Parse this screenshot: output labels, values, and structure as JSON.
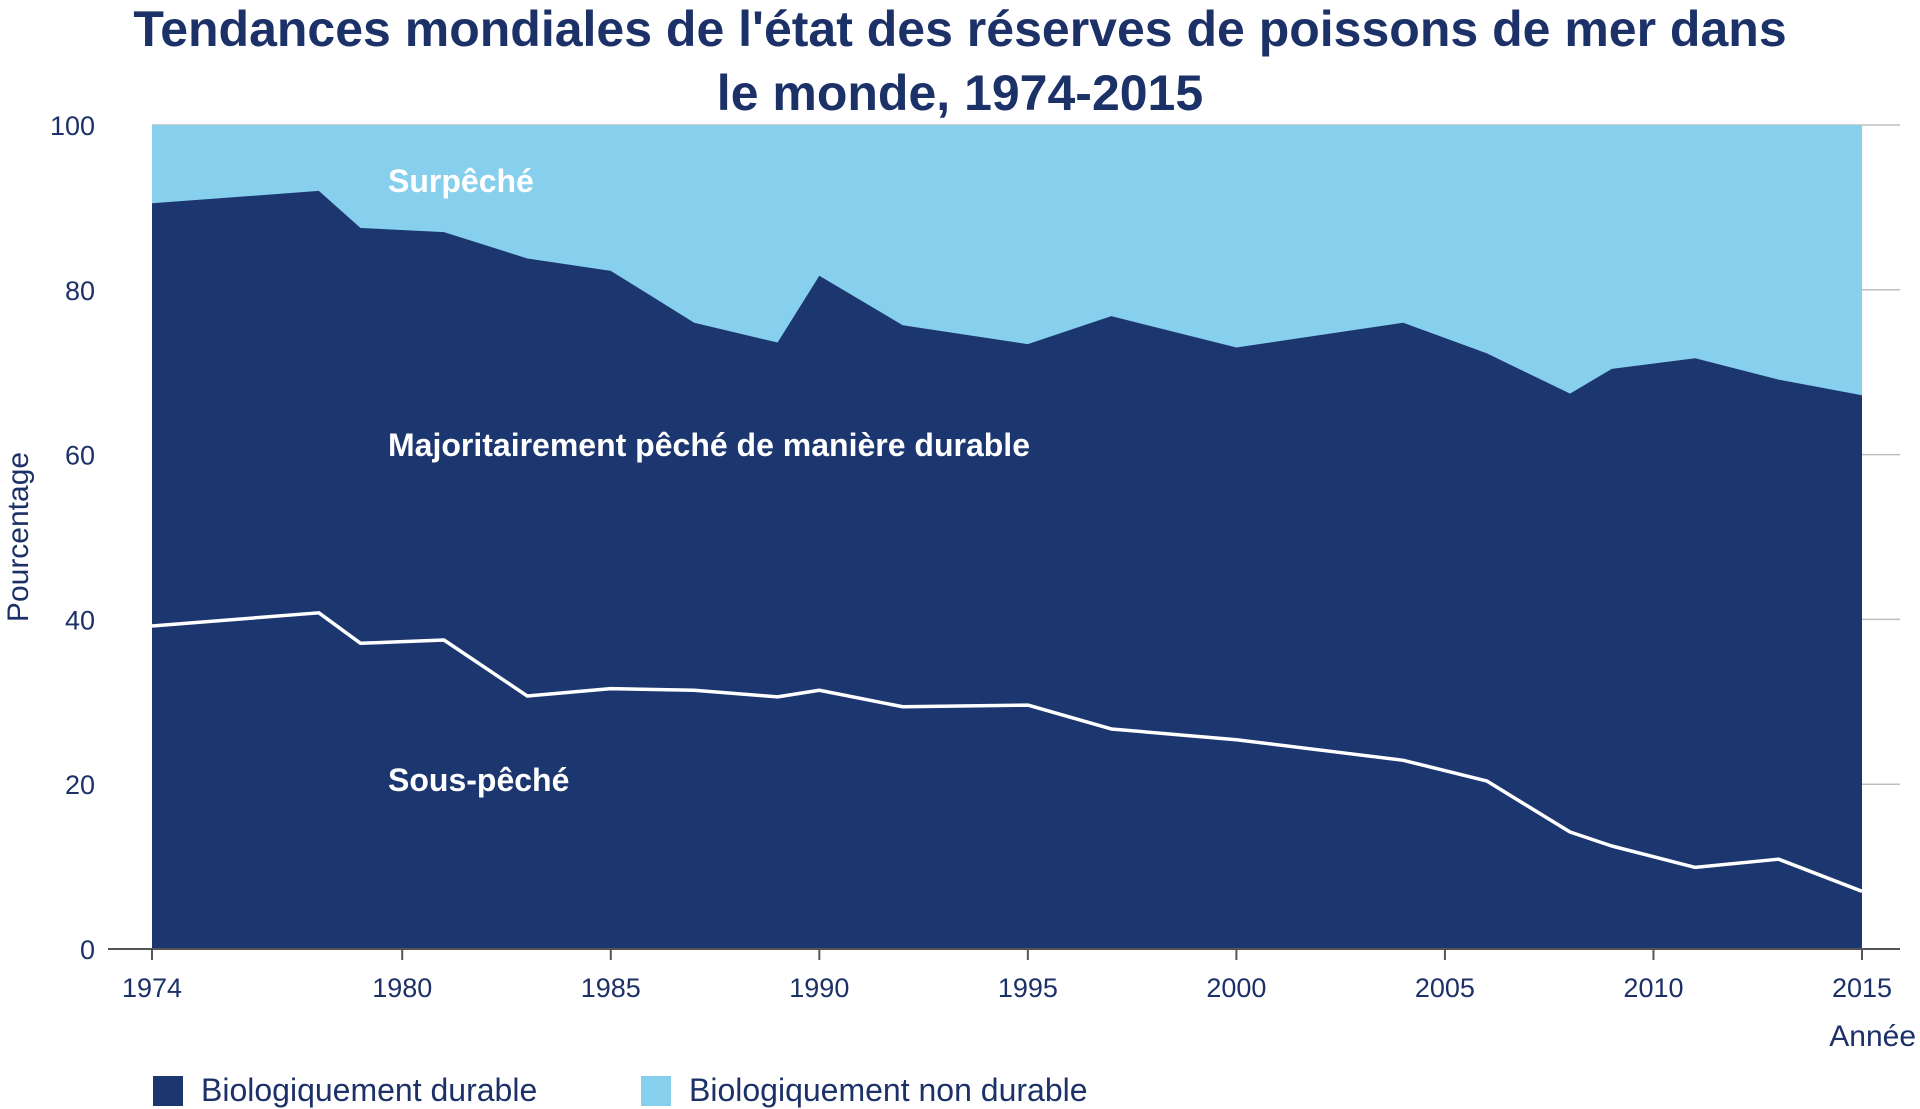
{
  "chart_data": {
    "type": "area",
    "title": "Tendances mondiales de l'état des réserves de poissons de mer dans le monde, 1974-2015",
    "title_lines": [
      "Tendances mondiales de l'état des réserves de poissons de mer dans",
      "le monde, 1974-2015"
    ],
    "xlabel": "Année",
    "ylabel": "Pourcentage",
    "xlim": [
      1974,
      2015
    ],
    "ylim": [
      0,
      100
    ],
    "x_ticks": [
      1974,
      1980,
      1985,
      1990,
      1995,
      2000,
      2005,
      2010,
      2015
    ],
    "y_ticks": [
      0,
      20,
      40,
      60,
      80,
      100
    ],
    "grid": "horizontal",
    "legend_position": "bottom-left",
    "x": [
      1974,
      1978,
      1979,
      1981,
      1983,
      1985,
      1987,
      1989,
      1990,
      1992,
      1995,
      1997,
      2000,
      2004,
      2006,
      2008,
      2009,
      2011,
      2013,
      2015
    ],
    "series": [
      {
        "name": "Sous-pêché",
        "values": [
          39.2,
          40.8,
          37.1,
          37.5,
          30.7,
          31.6,
          31.4,
          30.6,
          31.4,
          29.4,
          29.6,
          26.7,
          25.4,
          22.9,
          20.4,
          14.2,
          12.5,
          9.9,
          10.9,
          7.0
        ]
      },
      {
        "name": "Majoritairement pêché de manière durable",
        "values": [
          51.3,
          51.2,
          50.4,
          49.5,
          53.1,
          50.7,
          44.6,
          43.0,
          50.3,
          46.3,
          43.8,
          50.1,
          47.6,
          53.1,
          51.9,
          53.2,
          57.9,
          61.8,
          58.2,
          60.2
        ]
      },
      {
        "name": "Surpêché",
        "values": [
          9.5,
          8.0,
          12.5,
          13.0,
          16.2,
          17.7,
          24.0,
          26.4,
          18.3,
          24.3,
          26.6,
          23.2,
          27.0,
          24.0,
          27.7,
          32.6,
          29.6,
          28.3,
          30.9,
          32.8
        ]
      }
    ],
    "area_labels": {
      "overfished": "Surpêché",
      "sustainable": "Majoritairement pêché de manière durable",
      "underfished": "Sous-pêché"
    },
    "legend": [
      {
        "name": "Biologiquement durable",
        "color": "#1c3670"
      },
      {
        "name": "Biologiquement non durable",
        "color": "#86cfed"
      }
    ],
    "colors": {
      "sustainable": "#1c3670",
      "unsustainable": "#86cfed",
      "divider_line": "#ffffff",
      "text": "#1c3168",
      "grid": "#bfbfbf"
    }
  }
}
